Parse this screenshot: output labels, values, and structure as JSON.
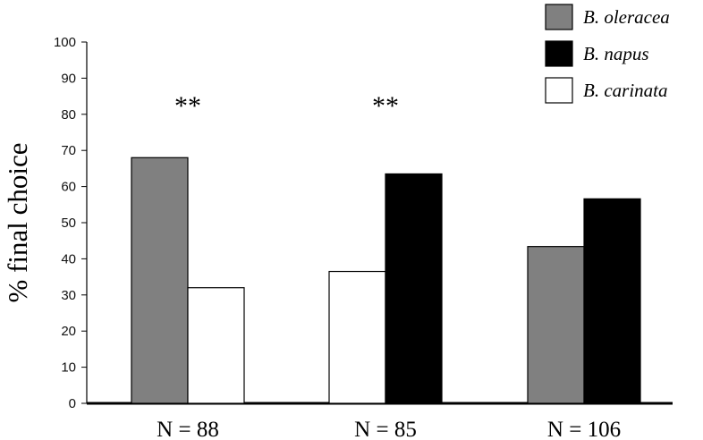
{
  "chart_data": {
    "type": "bar",
    "title": "",
    "xlabel": "",
    "ylabel": "% final choice",
    "ylim": [
      0,
      100
    ],
    "yticks": [
      0,
      10,
      20,
      30,
      40,
      50,
      60,
      70,
      80,
      90,
      100
    ],
    "categories": [
      "N = 88",
      "N = 85",
      "N = 106"
    ],
    "series": [
      {
        "name": "B. oleracea",
        "color": "#808080",
        "values": [
          68,
          null,
          43.4
        ]
      },
      {
        "name": "B. napus",
        "color": "#000000",
        "values": [
          null,
          63.5,
          56.6
        ]
      },
      {
        "name": "B. carinata",
        "color": "#ffffff",
        "values": [
          32,
          36.5,
          null
        ]
      }
    ],
    "bar_order": [
      [
        "B. oleracea",
        "B. carinata"
      ],
      [
        "B. carinata",
        "B. napus"
      ],
      [
        "B. oleracea",
        "B. napus"
      ]
    ],
    "annotations": [
      "**",
      "**",
      ""
    ],
    "legend_position": "top-right",
    "grid": false
  }
}
